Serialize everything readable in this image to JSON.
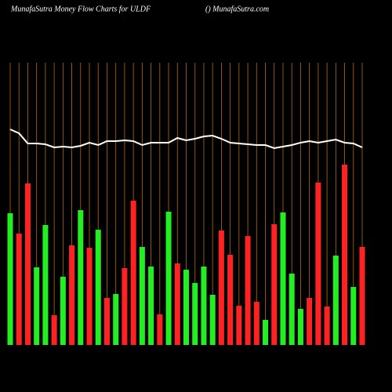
{
  "chart_data": {
    "type": "bar",
    "title": "MunafaSutra  Money Flow  Charts for ULDF",
    "subtitle": "() MunafaSutra.com",
    "ylim": [
      0,
      360
    ],
    "series": [
      {
        "type": "bar",
        "values": [
          168,
          142,
          206,
          99,
          153,
          38,
          87,
          127,
          172,
          124,
          147,
          60,
          65,
          98,
          184,
          125,
          100,
          39,
          170,
          104,
          96,
          79,
          100,
          64,
          146,
          115,
          50,
          139,
          55,
          32,
          154,
          169,
          91,
          46,
          60,
          207,
          49,
          114,
          230,
          74,
          125
        ],
        "colors": [
          "#22ee22",
          "#ff2222",
          "#ff2222",
          "#22ee22",
          "#22ee22",
          "#ff2222",
          "#22ee22",
          "#ff2222",
          "#22ee22",
          "#ff2222",
          "#22ee22",
          "#ff2222",
          "#22ee22",
          "#ff2222",
          "#ff2222",
          "#22ee22",
          "#22ee22",
          "#ff2222",
          "#22ee22",
          "#ff2222",
          "#22ee22",
          "#22ee22",
          "#22ee22",
          "#22ee22",
          "#ff2222",
          "#ff2222",
          "#ff2222",
          "#ff2222",
          "#ff2222",
          "#22ee22",
          "#ff2222",
          "#22ee22",
          "#22ee22",
          "#22ee22",
          "#ff2222",
          "#ff2222",
          "#ff2222",
          "#22ee22",
          "#ff2222",
          "#22ee22",
          "#ff2222"
        ]
      },
      {
        "type": "line",
        "color": "#ffffff",
        "values": [
          275,
          270,
          257,
          257,
          256,
          252,
          253,
          252,
          254,
          258,
          255,
          260,
          260,
          261,
          260,
          255,
          258,
          258,
          258,
          264,
          261,
          263,
          266,
          267,
          263,
          258,
          257,
          256,
          255,
          255,
          251,
          253,
          255,
          258,
          260,
          258,
          260,
          262,
          258,
          257,
          252
        ]
      }
    ],
    "gridline_color": "#b86a10"
  }
}
